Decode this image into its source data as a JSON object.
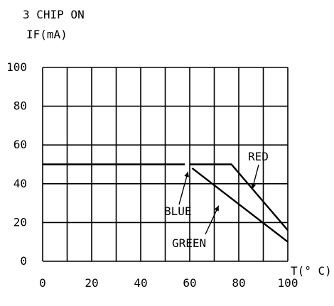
{
  "chart_data": {
    "type": "line",
    "title": "3 CHIP ON",
    "ylabel": "IF(mA)",
    "xlabel": "T(° C)",
    "xlim": [
      0,
      100
    ],
    "ylim": [
      0,
      100
    ],
    "x_ticks": [
      0,
      20,
      40,
      60,
      80,
      100
    ],
    "y_ticks": [
      0,
      20,
      40,
      60,
      80,
      100
    ],
    "x_tick_labels": [
      "0",
      "20",
      "40",
      "60",
      "80",
      "100"
    ],
    "y_tick_labels": [
      "0",
      "20",
      "40",
      "60",
      "80",
      "100"
    ],
    "grid": true,
    "series": [
      {
        "name": "RED",
        "x": [
          60,
          77,
          100
        ],
        "y": [
          50,
          50,
          16
        ]
      },
      {
        "name": "BLUE",
        "x": [
          0,
          58
        ],
        "y": [
          50,
          50
        ]
      },
      {
        "name": "GREEN",
        "x": [
          61,
          100
        ],
        "y": [
          48,
          10
        ]
      }
    ],
    "colors": {
      "line": "#000000",
      "grid": "#000000",
      "background": "#ffffff"
    }
  }
}
